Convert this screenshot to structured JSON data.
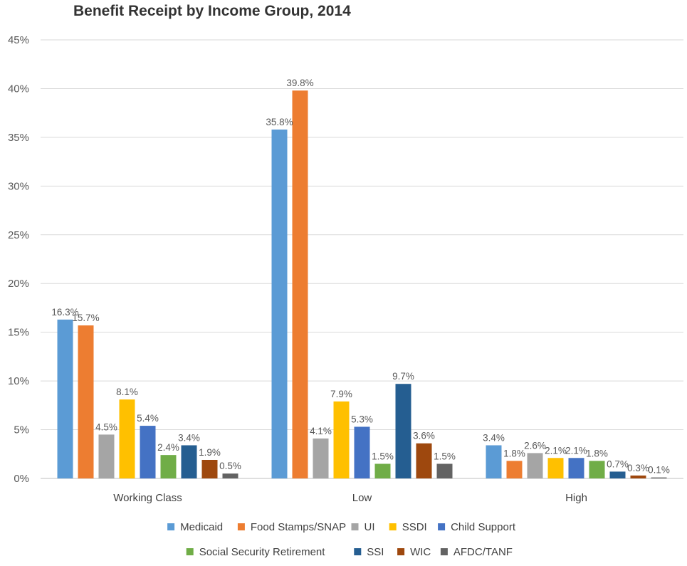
{
  "chart_data": {
    "type": "bar",
    "title": "Benefit Receipt by Income Group, 2014",
    "xlabel": "",
    "ylabel": "",
    "ylim": [
      0,
      45
    ],
    "y_ticks": [
      "0%",
      "5%",
      "10%",
      "15%",
      "20%",
      "25%",
      "30%",
      "35%",
      "40%",
      "45%"
    ],
    "y_tick_values": [
      0,
      5,
      10,
      15,
      20,
      25,
      30,
      35,
      40,
      45
    ],
    "categories": [
      "Working Class",
      "Low",
      "High"
    ],
    "grid": true,
    "legend_position": "bottom",
    "series": [
      {
        "name": "Medicaid",
        "color": "#5B9BD5",
        "values": [
          16.3,
          35.8,
          3.4
        ],
        "labels": [
          "16.3%",
          "35.8%",
          "3.4%"
        ]
      },
      {
        "name": "Food Stamps/SNAP",
        "color": "#ED7D31",
        "values": [
          15.7,
          39.8,
          1.8
        ],
        "labels": [
          "15.7%",
          "39.8%",
          "1.8%"
        ]
      },
      {
        "name": "UI",
        "color": "#A5A5A5",
        "values": [
          4.5,
          4.1,
          2.6
        ],
        "labels": [
          "4.5%",
          "4.1%",
          "2.6%"
        ]
      },
      {
        "name": "SSDI",
        "color": "#FFC000",
        "values": [
          8.1,
          7.9,
          2.1
        ],
        "labels": [
          "8.1%",
          "7.9%",
          "2.1%"
        ]
      },
      {
        "name": "Child Support",
        "color": "#4472C4",
        "values": [
          5.4,
          5.3,
          2.1
        ],
        "labels": [
          "5.4%",
          "5.3%",
          "2.1%"
        ]
      },
      {
        "name": "Social Security Retirement",
        "color": "#70AD47",
        "values": [
          2.4,
          1.5,
          1.8
        ],
        "labels": [
          "2.4%",
          "1.5%",
          "1.8%"
        ]
      },
      {
        "name": "SSI",
        "color": "#255E91",
        "values": [
          3.4,
          9.7,
          0.7
        ],
        "labels": [
          "3.4%",
          "9.7%",
          "0.7%"
        ]
      },
      {
        "name": "WIC",
        "color": "#9E480E",
        "values": [
          1.9,
          3.6,
          0.3
        ],
        "labels": [
          "1.9%",
          "3.6%",
          "0.3%"
        ]
      },
      {
        "name": "AFDC/TANF",
        "color": "#636363",
        "values": [
          0.5,
          1.5,
          0.1
        ],
        "labels": [
          "0.5%",
          "1.5%",
          "0.1%"
        ]
      }
    ]
  }
}
